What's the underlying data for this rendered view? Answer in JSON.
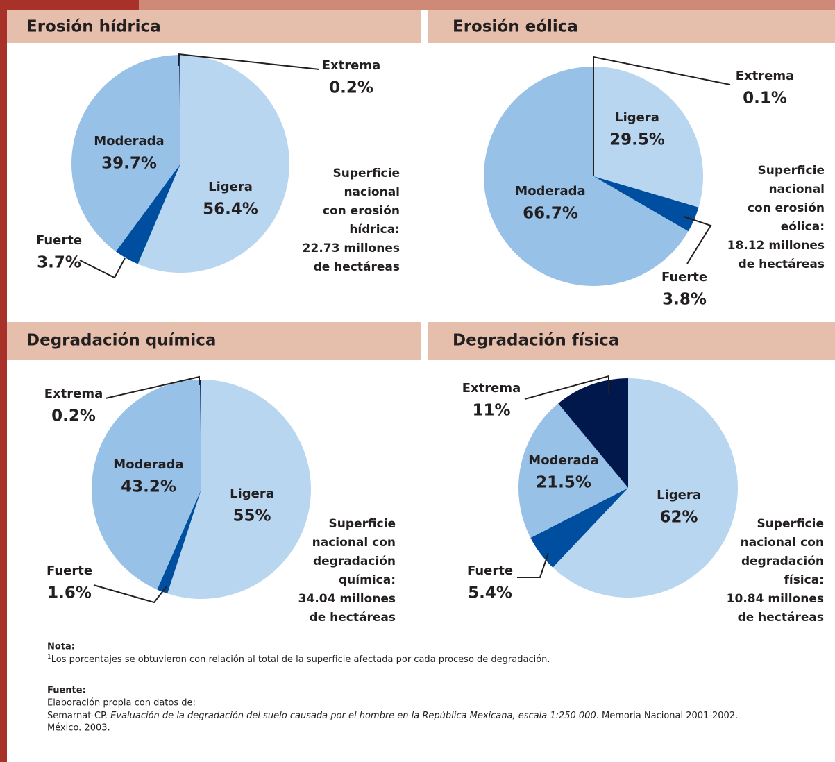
{
  "chart_data": [
    {
      "type": "pie",
      "title": "Erosión hídrica",
      "categories": [
        "Ligera",
        "Fuerte",
        "Moderada",
        "Extrema"
      ],
      "values": [
        56.4,
        3.7,
        39.7,
        0.2
      ],
      "value_labels": [
        "56.4%",
        "3.7%",
        "39.7%",
        "0.2%"
      ],
      "colors": [
        "#b9d6f0",
        "#004e9f",
        "#97c1e7",
        "#00184c"
      ],
      "annotation": [
        "Superficie",
        "nacional",
        "con erosión",
        "hídrica:",
        "22.73 millones",
        "de hectáreas"
      ]
    },
    {
      "type": "pie",
      "title": "Erosión eólica",
      "categories": [
        "Extrema",
        "Ligera",
        "Fuerte",
        "Moderada"
      ],
      "values": [
        0.1,
        29.5,
        3.8,
        66.7
      ],
      "value_labels": [
        "0.1%",
        "29.5%",
        "3.8%",
        "66.7%"
      ],
      "colors": [
        "#00184c",
        "#b9d6f0",
        "#004e9f",
        "#97c1e7"
      ],
      "annotation": [
        "Superficie",
        "nacional",
        "con erosión",
        "eólica:",
        "18.12 millones",
        "de hectáreas"
      ]
    },
    {
      "type": "pie",
      "title": "Degradación química",
      "categories": [
        "Ligera",
        "Fuerte",
        "Moderada",
        "Extrema"
      ],
      "values": [
        55,
        1.6,
        43.2,
        0.2
      ],
      "value_labels": [
        "55%",
        "1.6%",
        "43.2%",
        "0.2%"
      ],
      "colors": [
        "#b9d6f0",
        "#004e9f",
        "#97c1e7",
        "#00184c"
      ],
      "annotation": [
        "Superficie",
        "nacional con",
        "degradación",
        "química:",
        "34.04 millones",
        "de hectáreas"
      ]
    },
    {
      "type": "pie",
      "title": "Degradación física",
      "categories": [
        "Ligera",
        "Fuerte",
        "Moderada",
        "Extrema"
      ],
      "values": [
        62,
        5.4,
        21.5,
        11
      ],
      "value_labels": [
        "62%",
        "5.4%",
        "21.5%",
        "11%"
      ],
      "colors": [
        "#b9d6f0",
        "#004e9f",
        "#97c1e7",
        "#00184c"
      ],
      "annotation": [
        "Superficie",
        "nacional con",
        "degradación",
        "física:",
        "10.84 millones",
        "de hectáreas"
      ]
    }
  ],
  "notes": {
    "nota_title": "Nota:",
    "nota_mark": "1",
    "nota_text": "Los porcentajes se obtuvieron con relación al total de la superficie afectada por cada proceso de degradación.",
    "fuente_title": "Fuente:",
    "fuente_line1": "Elaboración propia con datos de:",
    "fuente_line2": [
      "Semarnat-CP. ",
      "Evaluación de la degradación del suelo causada por el hombre en la República Mexicana, escala 1:250 000",
      ". Memoria Nacional 2001-2002."
    ],
    "fuente_line3": "México. 2003."
  }
}
